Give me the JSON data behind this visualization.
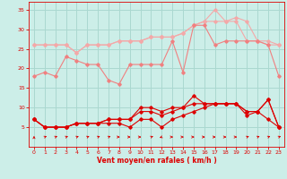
{
  "x": [
    0,
    1,
    2,
    3,
    4,
    5,
    6,
    7,
    8,
    9,
    10,
    11,
    12,
    13,
    14,
    15,
    16,
    17,
    18,
    19,
    20,
    21,
    22,
    23
  ],
  "line_red1": [
    7,
    5,
    5,
    5,
    6,
    6,
    6,
    6,
    6,
    5,
    7,
    7,
    5,
    7,
    8,
    9,
    10,
    11,
    11,
    11,
    8,
    9,
    7,
    5
  ],
  "line_red2": [
    7,
    5,
    5,
    5,
    6,
    6,
    6,
    7,
    7,
    7,
    9,
    9,
    8,
    9,
    10,
    11,
    11,
    11,
    11,
    11,
    9,
    9,
    12,
    5
  ],
  "line_red3": [
    7,
    5,
    5,
    5,
    6,
    6,
    6,
    7,
    7,
    7,
    10,
    10,
    9,
    10,
    10,
    13,
    11,
    11,
    11,
    11,
    9,
    9,
    12,
    5
  ],
  "line_pink1": [
    18,
    19,
    18,
    23,
    22,
    21,
    21,
    17,
    16,
    21,
    21,
    21,
    21,
    27,
    19,
    31,
    31,
    26,
    27,
    27,
    27,
    27,
    26,
    18
  ],
  "line_pink2": [
    26,
    26,
    26,
    26,
    24,
    26,
    26,
    26,
    27,
    27,
    27,
    28,
    28,
    28,
    29,
    31,
    32,
    32,
    32,
    33,
    32,
    27,
    27,
    26
  ],
  "line_pink3": [
    26,
    26,
    26,
    26,
    24,
    26,
    26,
    26,
    27,
    27,
    27,
    28,
    28,
    28,
    29,
    31,
    32,
    35,
    32,
    32,
    27,
    27,
    26,
    26
  ],
  "color_red": "#dd0000",
  "color_pink1": "#f08080",
  "color_pink2": "#f4a8a8",
  "background": "#cceee8",
  "grid_color": "#aad8d0",
  "xlabel": "Vent moyen/en rafales ( km/h )",
  "ylim": [
    0,
    37
  ],
  "xlim": [
    -0.5,
    23.5
  ],
  "yticks": [
    5,
    10,
    15,
    20,
    25,
    30,
    35
  ],
  "xticks": [
    0,
    1,
    2,
    3,
    4,
    5,
    6,
    7,
    8,
    9,
    10,
    11,
    12,
    13,
    14,
    15,
    16,
    17,
    18,
    19,
    20,
    21,
    22,
    23
  ],
  "arrow_angles": [
    0,
    45,
    45,
    45,
    45,
    45,
    45,
    45,
    90,
    90,
    90,
    45,
    225,
    90,
    90,
    90,
    90,
    90,
    90,
    90,
    45,
    45,
    45,
    45
  ]
}
